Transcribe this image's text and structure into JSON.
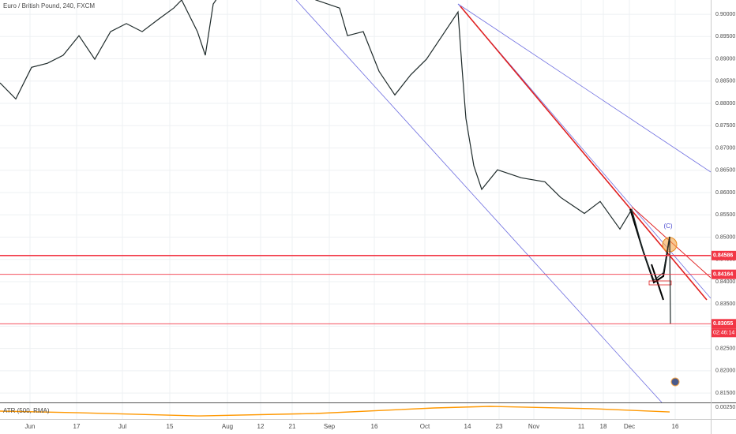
{
  "chart_data": [
    {
      "type": "line",
      "title": "Euro / British Pound, 240, FXCM",
      "x": [
        0,
        20,
        40,
        60,
        80,
        100,
        120,
        140,
        160,
        180,
        200,
        220,
        230,
        250,
        260,
        270,
        300,
        350,
        400,
        430,
        440,
        460,
        480,
        500,
        520,
        540,
        560,
        580,
        585,
        590,
        600,
        610,
        630,
        660,
        690,
        710,
        740,
        760,
        785,
        800,
        815,
        828,
        840,
        848,
        849
      ],
      "series": [
        {
          "name": "EURGBP",
          "color": "#1e2a2a",
          "values": [
            0.8846,
            0.881,
            0.8881,
            0.889,
            0.8908,
            0.8952,
            0.8899,
            0.8961,
            0.8979,
            0.8961,
            0.8988,
            0.9014,
            0.9032,
            0.8961,
            0.8908,
            0.9023,
            0.91,
            0.908,
            0.9032,
            0.9014,
            0.8952,
            0.8961,
            0.8872,
            0.8819,
            0.8864,
            0.8899,
            0.8952,
            0.9005,
            0.8881,
            0.8766,
            0.866,
            0.8607,
            0.8651,
            0.8633,
            0.8624,
            0.8589,
            0.8553,
            0.858,
            0.8518,
            0.8562,
            0.8465,
            0.8403,
            0.842,
            0.85,
            0.8305
          ]
        }
      ],
      "xlim": [
        0,
        900
      ],
      "xticks": [
        {
          "value": 38,
          "label": "Jun"
        },
        {
          "value": 97,
          "label": "17"
        },
        {
          "value": 155,
          "label": "Jul"
        },
        {
          "value": 215,
          "label": "15"
        },
        {
          "value": 288,
          "label": "Aug"
        },
        {
          "value": 330,
          "label": "12"
        },
        {
          "value": 370,
          "label": "21"
        },
        {
          "value": 417,
          "label": "Sep"
        },
        {
          "value": 474,
          "label": "16"
        },
        {
          "value": 538,
          "label": "Oct"
        },
        {
          "value": 592,
          "label": "14"
        },
        {
          "value": 632,
          "label": "23"
        },
        {
          "value": 676,
          "label": "Nov"
        },
        {
          "value": 736,
          "label": "11"
        },
        {
          "value": 764,
          "label": "18"
        },
        {
          "value": 797,
          "label": "Dec"
        },
        {
          "value": 855,
          "label": "16"
        }
      ],
      "ylim": [
        0.8129,
        0.9032
      ],
      "yticks": [
        {
          "value": 0.9,
          "label": "0.90000"
        },
        {
          "value": 0.895,
          "label": "0.89500"
        },
        {
          "value": 0.89,
          "label": "0.89000"
        },
        {
          "value": 0.885,
          "label": "0.88500"
        },
        {
          "value": 0.88,
          "label": "0.88000"
        },
        {
          "value": 0.875,
          "label": "0.87500"
        },
        {
          "value": 0.87,
          "label": "0.87000"
        },
        {
          "value": 0.865,
          "label": "0.86500"
        },
        {
          "value": 0.86,
          "label": "0.86000"
        },
        {
          "value": 0.855,
          "label": "0.85500"
        },
        {
          "value": 0.85,
          "label": "0.85000"
        },
        {
          "value": 0.845,
          "label": "0.84500"
        },
        {
          "value": 0.84,
          "label": "0.84000"
        },
        {
          "value": 0.835,
          "label": "0.83500"
        },
        {
          "value": 0.83,
          "label": "0.83000"
        },
        {
          "value": 0.825,
          "label": "0.82500"
        },
        {
          "value": 0.82,
          "label": "0.82000"
        },
        {
          "value": 0.815,
          "label": "0.81500"
        }
      ],
      "grid": true,
      "price_lines": [
        {
          "value": 0.84586,
          "color": "#f23645"
        },
        {
          "value": 0.84164,
          "color": "#f23645"
        },
        {
          "value": 0.83055,
          "color": "#f23645"
        }
      ],
      "countdown": "02:46:14",
      "wave_label": "(C)"
    },
    {
      "type": "line",
      "title": "ATR (500, RMA)",
      "x": [
        0,
        100,
        250,
        400,
        550,
        620,
        750,
        848
      ],
      "series": [
        {
          "name": "ATR",
          "color": "#ff9800",
          "values": [
            0.00222,
            0.0021,
            0.00187,
            0.00205,
            0.00245,
            0.00257,
            0.0024,
            0.00216
          ]
        }
      ],
      "xlim": [
        0,
        900
      ],
      "ylim": [
        0.0017,
        0.0028
      ],
      "yticks": [
        {
          "value": 0.0025,
          "label": "0.00250"
        }
      ]
    }
  ]
}
